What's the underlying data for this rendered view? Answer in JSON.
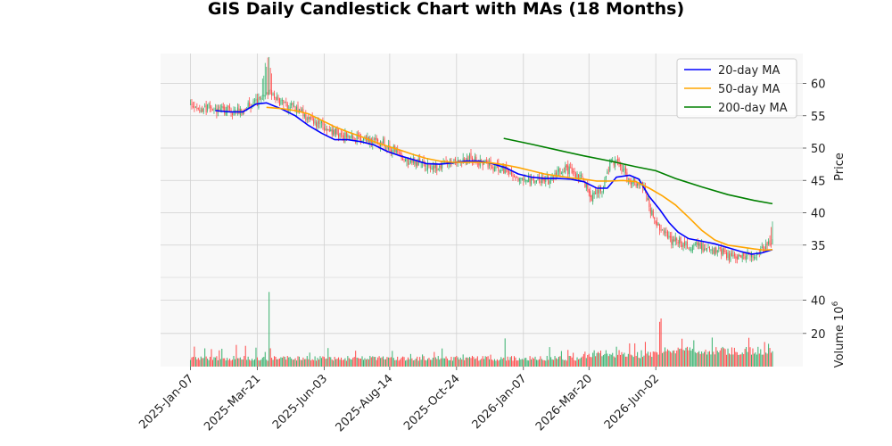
{
  "chart_data": {
    "type": "candlestick",
    "title": "GIS Daily Candlestick Chart with MAs (18 Months)",
    "ylabel": "Price",
    "volume_label": "Volume",
    "volume_exponent_base": "10",
    "volume_exponent": "6",
    "x_ticks": [
      "2025-Jan-07",
      "2025-Mar-21",
      "2025-Jun-03",
      "2025-Aug-14",
      "2025-Oct-24",
      "2026-Jan-07",
      "2026-Mar-20",
      "2026-Jun-02"
    ],
    "price_ylim": [
      31,
      65
    ],
    "price_yticks": [
      35,
      40,
      45,
      50,
      55,
      60
    ],
    "volume_ylim": [
      0,
      48
    ],
    "volume_yticks": [
      20,
      40
    ],
    "grid": true,
    "legend": {
      "position": "top-right",
      "entries": [
        {
          "name": "20-day MA",
          "color": "#0000ff"
        },
        {
          "name": "50-day MA",
          "color": "#ffa500"
        },
        {
          "name": "200-day MA",
          "color": "#008000"
        }
      ]
    },
    "colors": {
      "up": "#3cb371",
      "down": "#ff4c4c",
      "grid": "#d0d0d0",
      "panel_bg": "#f8f8f8"
    },
    "price_path_anchors": [
      {
        "x": 0,
        "y": 56.5
      },
      {
        "x": 20,
        "y": 56.0
      },
      {
        "x": 35,
        "y": 55.5
      },
      {
        "x": 50,
        "y": 57.0
      },
      {
        "x": 60,
        "y": 58.5
      },
      {
        "x": 70,
        "y": 57.0
      },
      {
        "x": 80,
        "y": 56.0
      },
      {
        "x": 95,
        "y": 54.0
      },
      {
        "x": 120,
        "y": 51.5
      },
      {
        "x": 140,
        "y": 51.5
      },
      {
        "x": 150,
        "y": 50.5
      },
      {
        "x": 165,
        "y": 48.0
      },
      {
        "x": 190,
        "y": 47.0
      },
      {
        "x": 200,
        "y": 48.0
      },
      {
        "x": 215,
        "y": 48.5
      },
      {
        "x": 225,
        "y": 47.5
      },
      {
        "x": 240,
        "y": 46.5
      },
      {
        "x": 255,
        "y": 45.0
      },
      {
        "x": 275,
        "y": 45.0
      },
      {
        "x": 285,
        "y": 47.0
      },
      {
        "x": 300,
        "y": 45.0
      },
      {
        "x": 305,
        "y": 42.0
      },
      {
        "x": 315,
        "y": 44.0
      },
      {
        "x": 320,
        "y": 47.5
      },
      {
        "x": 325,
        "y": 48.0
      },
      {
        "x": 335,
        "y": 45.0
      },
      {
        "x": 345,
        "y": 44.0
      },
      {
        "x": 355,
        "y": 38.0
      },
      {
        "x": 365,
        "y": 36.0
      },
      {
        "x": 380,
        "y": 35.0
      },
      {
        "x": 395,
        "y": 34.5
      },
      {
        "x": 405,
        "y": 34.0
      },
      {
        "x": 415,
        "y": 33.0
      },
      {
        "x": 425,
        "y": 33.5
      },
      {
        "x": 435,
        "y": 34.0
      },
      {
        "x": 440,
        "y": 35.0
      },
      {
        "x": 444,
        "y": 36.0
      }
    ],
    "series": [
      {
        "name": "20-day MA",
        "color": "#0000ff",
        "points": [
          [
            19,
            55.8
          ],
          [
            30,
            55.6
          ],
          [
            40,
            55.6
          ],
          [
            50,
            56.8
          ],
          [
            58,
            57.0
          ],
          [
            70,
            56.0
          ],
          [
            80,
            55.0
          ],
          [
            90,
            53.5
          ],
          [
            100,
            52.3
          ],
          [
            110,
            51.3
          ],
          [
            120,
            51.3
          ],
          [
            130,
            51.0
          ],
          [
            140,
            50.5
          ],
          [
            150,
            49.5
          ],
          [
            160,
            48.8
          ],
          [
            170,
            48.2
          ],
          [
            180,
            47.6
          ],
          [
            190,
            47.5
          ],
          [
            200,
            47.7
          ],
          [
            210,
            48.0
          ],
          [
            220,
            48.0
          ],
          [
            230,
            47.6
          ],
          [
            240,
            47.0
          ],
          [
            250,
            46.0
          ],
          [
            260,
            45.5
          ],
          [
            270,
            45.3
          ],
          [
            280,
            45.3
          ],
          [
            290,
            45.2
          ],
          [
            300,
            44.8
          ],
          [
            310,
            43.8
          ],
          [
            318,
            43.8
          ],
          [
            325,
            45.5
          ],
          [
            335,
            45.8
          ],
          [
            342,
            45.2
          ],
          [
            350,
            42.5
          ],
          [
            358,
            40.5
          ],
          [
            365,
            38.5
          ],
          [
            372,
            37.0
          ],
          [
            380,
            36.0
          ],
          [
            390,
            35.6
          ],
          [
            400,
            35.2
          ],
          [
            410,
            34.6
          ],
          [
            420,
            34.0
          ],
          [
            428,
            33.6
          ],
          [
            436,
            33.8
          ],
          [
            444,
            34.3
          ]
        ]
      },
      {
        "name": "50-day MA",
        "color": "#ffa500",
        "points": [
          [
            58,
            56.3
          ],
          [
            70,
            56.1
          ],
          [
            80,
            55.8
          ],
          [
            90,
            55.3
          ],
          [
            100,
            54.3
          ],
          [
            110,
            53.3
          ],
          [
            120,
            52.5
          ],
          [
            130,
            51.8
          ],
          [
            140,
            51.0
          ],
          [
            150,
            50.3
          ],
          [
            160,
            49.7
          ],
          [
            170,
            49.0
          ],
          [
            180,
            48.4
          ],
          [
            190,
            48.0
          ],
          [
            200,
            47.8
          ],
          [
            210,
            47.8
          ],
          [
            220,
            47.8
          ],
          [
            230,
            47.7
          ],
          [
            240,
            47.4
          ],
          [
            250,
            47.0
          ],
          [
            260,
            46.5
          ],
          [
            270,
            46.0
          ],
          [
            280,
            45.7
          ],
          [
            290,
            45.4
          ],
          [
            300,
            45.2
          ],
          [
            310,
            44.9
          ],
          [
            320,
            44.9
          ],
          [
            330,
            45.0
          ],
          [
            340,
            44.8
          ],
          [
            350,
            43.8
          ],
          [
            360,
            42.6
          ],
          [
            370,
            41.2
          ],
          [
            380,
            39.3
          ],
          [
            390,
            37.3
          ],
          [
            400,
            35.8
          ],
          [
            410,
            35.0
          ],
          [
            420,
            34.7
          ],
          [
            430,
            34.4
          ],
          [
            438,
            34.2
          ],
          [
            444,
            34.3
          ]
        ]
      },
      {
        "name": "200-day MA",
        "color": "#008000",
        "points": [
          [
            239,
            51.5
          ],
          [
            260,
            50.6
          ],
          [
            280,
            49.7
          ],
          [
            300,
            48.8
          ],
          [
            320,
            48.0
          ],
          [
            340,
            47.1
          ],
          [
            355,
            46.5
          ],
          [
            370,
            45.3
          ],
          [
            390,
            44.0
          ],
          [
            410,
            42.8
          ],
          [
            430,
            41.9
          ],
          [
            444,
            41.4
          ]
        ]
      }
    ],
    "volume_spikes": [
      {
        "x": 60,
        "value": 45
      },
      {
        "x": 240,
        "value": 17
      },
      {
        "x": 325,
        "value": 12
      },
      {
        "x": 335,
        "value": 14
      },
      {
        "x": 358,
        "value": 27
      },
      {
        "x": 359,
        "value": 29
      }
    ]
  }
}
